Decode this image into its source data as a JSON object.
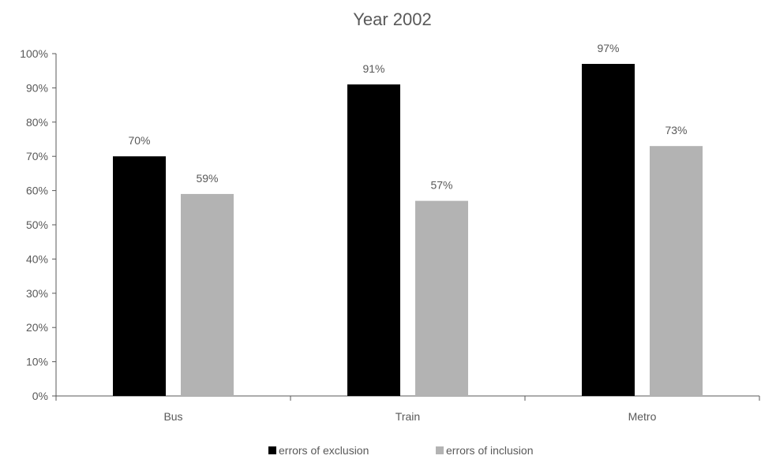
{
  "chart_data": {
    "type": "bar",
    "title": "Year 2002",
    "categories": [
      "Bus",
      "Train",
      "Metro"
    ],
    "series": [
      {
        "name": "errors of exclusion",
        "values": [
          70,
          91,
          97
        ],
        "color": "#000000",
        "data_labels": [
          "70%",
          "91%",
          "97%"
        ]
      },
      {
        "name": "errors of inclusion",
        "values": [
          59,
          57,
          73
        ],
        "color": "#b3b3b3",
        "data_labels": [
          "59%",
          "57%",
          "73%"
        ]
      }
    ],
    "ylim": [
      0,
      100
    ],
    "y_ticks": [
      0,
      10,
      20,
      30,
      40,
      50,
      60,
      70,
      80,
      90,
      100
    ],
    "y_tick_labels": [
      "0%",
      "10%",
      "20%",
      "30%",
      "40%",
      "50%",
      "60%",
      "70%",
      "80%",
      "90%",
      "100%"
    ],
    "grid": false,
    "legend_position": "bottom",
    "xlabel": "",
    "ylabel": ""
  }
}
